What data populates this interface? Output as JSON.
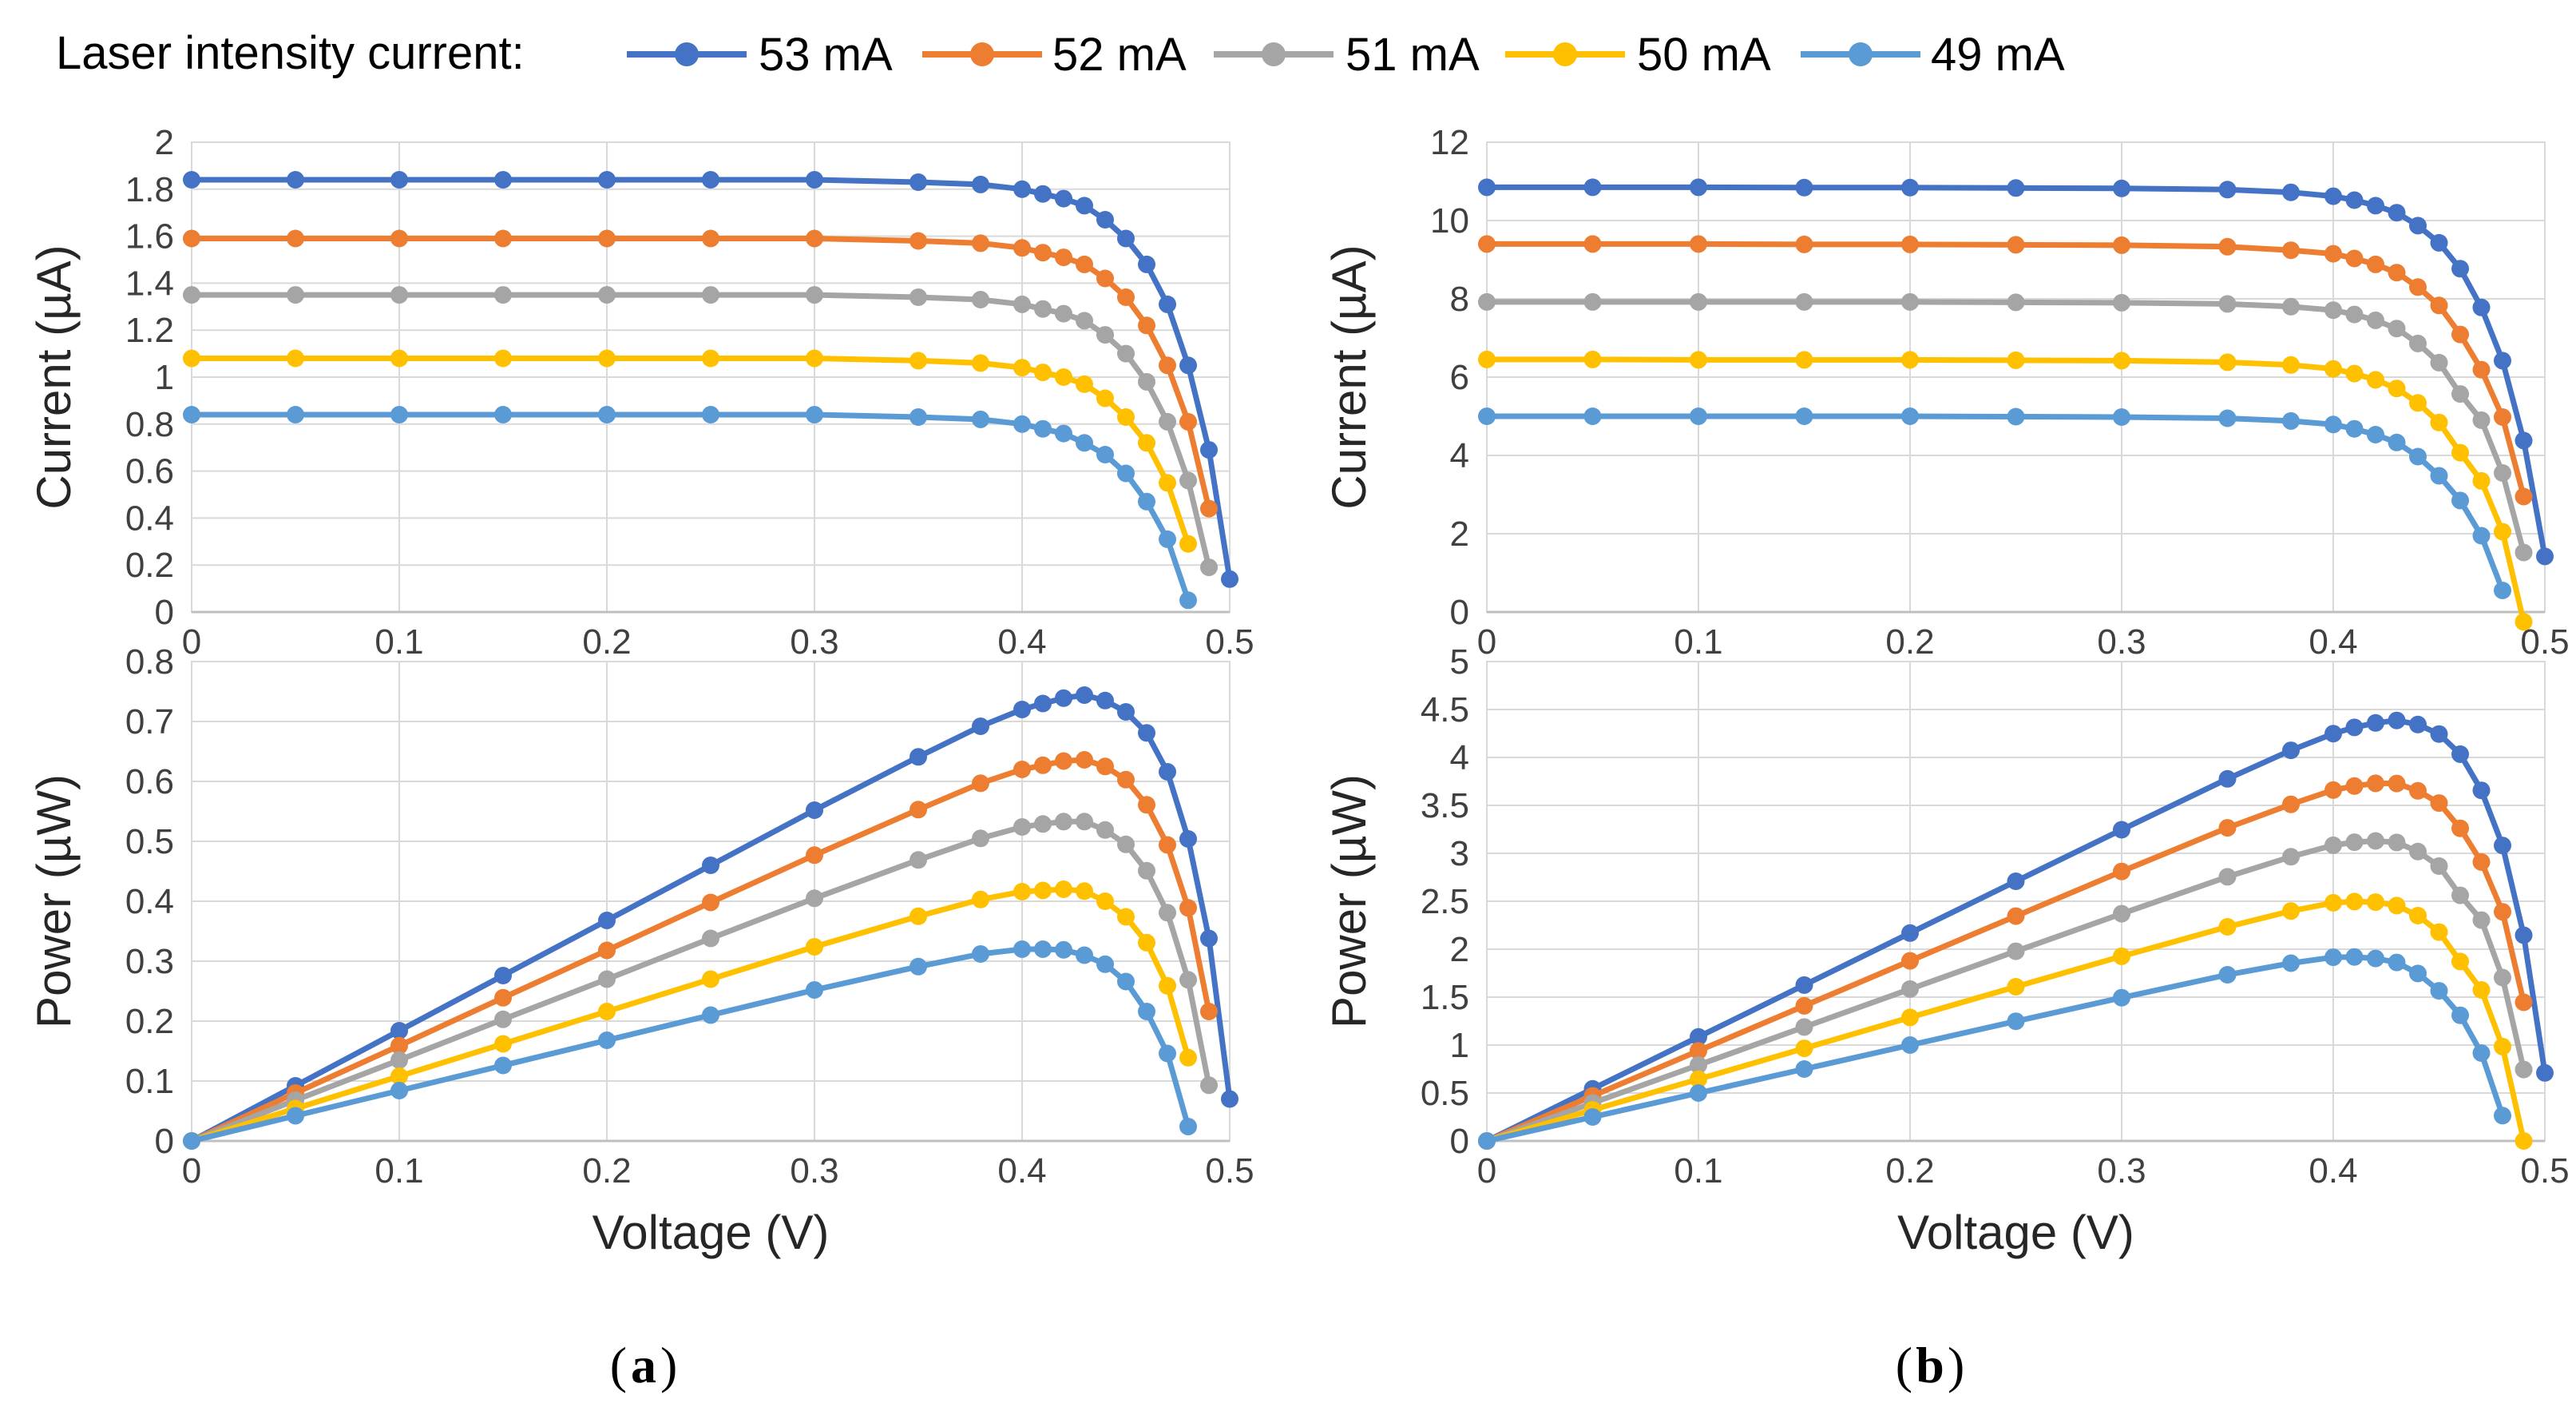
{
  "legend": {
    "title": "Laser intensity current:",
    "entries": [
      {
        "label": "53 mA",
        "color": "#4472C4"
      },
      {
        "label": "52 mA",
        "color": "#ED7D31"
      },
      {
        "label": "51 mA",
        "color": "#A5A5A5"
      },
      {
        "label": "50 mA",
        "color": "#FFC000"
      },
      {
        "label": "49 mA",
        "color": "#5B9BD5"
      }
    ]
  },
  "panels": [
    {
      "label": "a"
    },
    {
      "label": "b"
    }
  ],
  "chart_data": [
    {
      "id": "a-current",
      "type": "line",
      "panel": "a",
      "xlabel": "Voltage (V)",
      "ylabel": "Current (µA)",
      "xlim": [
        0,
        0.5
      ],
      "ylim": [
        0,
        2
      ],
      "xticks": [
        0,
        0.1,
        0.2,
        0.3,
        0.4,
        0.5
      ],
      "xtick_labels": [
        "0",
        "0.1",
        "0.2",
        "0.3",
        "0.4",
        "0.5"
      ],
      "yticks": [
        0,
        0.2,
        0.4,
        0.6,
        0.8,
        1,
        1.2,
        1.4,
        1.6,
        1.8,
        2
      ],
      "ytick_labels": [
        "0",
        "0.2",
        "0.4",
        "0.6",
        "0.8",
        "1",
        "1.2",
        "1.4",
        "1.6",
        "1.8",
        "2"
      ],
      "grid": true,
      "series": [
        {
          "name": "53 mA",
          "x": [
            0,
            0.05,
            0.1,
            0.15,
            0.2,
            0.25,
            0.3,
            0.35,
            0.38,
            0.4,
            0.41,
            0.42,
            0.43,
            0.44,
            0.45,
            0.46,
            0.47,
            0.48,
            0.49,
            0.5
          ],
          "y": [
            1.84,
            1.84,
            1.84,
            1.84,
            1.84,
            1.84,
            1.84,
            1.83,
            1.82,
            1.8,
            1.78,
            1.76,
            1.73,
            1.67,
            1.59,
            1.48,
            1.31,
            1.05,
            0.69,
            0.14
          ]
        },
        {
          "name": "52 mA",
          "x": [
            0,
            0.05,
            0.1,
            0.15,
            0.2,
            0.25,
            0.3,
            0.35,
            0.38,
            0.4,
            0.41,
            0.42,
            0.43,
            0.44,
            0.45,
            0.46,
            0.47,
            0.48,
            0.49
          ],
          "y": [
            1.59,
            1.59,
            1.59,
            1.59,
            1.59,
            1.59,
            1.59,
            1.58,
            1.57,
            1.55,
            1.53,
            1.51,
            1.48,
            1.42,
            1.34,
            1.22,
            1.05,
            0.81,
            0.44
          ]
        },
        {
          "name": "51 mA",
          "x": [
            0,
            0.05,
            0.1,
            0.15,
            0.2,
            0.25,
            0.3,
            0.35,
            0.38,
            0.4,
            0.41,
            0.42,
            0.43,
            0.44,
            0.45,
            0.46,
            0.47,
            0.48,
            0.49
          ],
          "y": [
            1.35,
            1.35,
            1.35,
            1.35,
            1.35,
            1.35,
            1.35,
            1.34,
            1.33,
            1.31,
            1.29,
            1.27,
            1.24,
            1.18,
            1.1,
            0.98,
            0.81,
            0.56,
            0.19
          ]
        },
        {
          "name": "50 mA",
          "x": [
            0,
            0.05,
            0.1,
            0.15,
            0.2,
            0.25,
            0.3,
            0.35,
            0.38,
            0.4,
            0.41,
            0.42,
            0.43,
            0.44,
            0.45,
            0.46,
            0.47,
            0.48
          ],
          "y": [
            1.08,
            1.08,
            1.08,
            1.08,
            1.08,
            1.08,
            1.08,
            1.07,
            1.06,
            1.04,
            1.02,
            1.0,
            0.97,
            0.91,
            0.83,
            0.72,
            0.55,
            0.29
          ]
        },
        {
          "name": "49 mA",
          "x": [
            0,
            0.05,
            0.1,
            0.15,
            0.2,
            0.25,
            0.3,
            0.35,
            0.38,
            0.4,
            0.41,
            0.42,
            0.43,
            0.44,
            0.45,
            0.46,
            0.47,
            0.48
          ],
          "y": [
            0.84,
            0.84,
            0.84,
            0.84,
            0.84,
            0.84,
            0.84,
            0.83,
            0.82,
            0.8,
            0.78,
            0.76,
            0.72,
            0.67,
            0.59,
            0.47,
            0.31,
            0.05
          ]
        }
      ]
    },
    {
      "id": "a-power",
      "type": "line",
      "panel": "a",
      "xlabel": "Voltage (V)",
      "ylabel": "Power (µW)",
      "xlim": [
        0,
        0.5
      ],
      "ylim": [
        0,
        0.8
      ],
      "xticks": [
        0,
        0.1,
        0.2,
        0.3,
        0.4,
        0.5
      ],
      "xtick_labels": [
        "0",
        "0.1",
        "0.2",
        "0.3",
        "0.4",
        "0.5"
      ],
      "yticks": [
        0,
        0.1,
        0.2,
        0.3,
        0.4,
        0.5,
        0.6,
        0.7,
        0.8
      ],
      "ytick_labels": [
        "0",
        "0.1",
        "0.2",
        "0.3",
        "0.4",
        "0.5",
        "0.6",
        "0.7",
        "0.8"
      ],
      "grid": true,
      "series": [
        {
          "name": "53 mA",
          "x": [
            0,
            0.05,
            0.1,
            0.15,
            0.2,
            0.25,
            0.3,
            0.35,
            0.38,
            0.4,
            0.41,
            0.42,
            0.43,
            0.44,
            0.45,
            0.46,
            0.47,
            0.48,
            0.49,
            0.5
          ],
          "y": [
            0,
            0.092,
            0.184,
            0.276,
            0.368,
            0.46,
            0.552,
            0.641,
            0.692,
            0.72,
            0.73,
            0.739,
            0.744,
            0.735,
            0.716,
            0.681,
            0.616,
            0.504,
            0.338,
            0.07
          ]
        },
        {
          "name": "52 mA",
          "x": [
            0,
            0.05,
            0.1,
            0.15,
            0.2,
            0.25,
            0.3,
            0.35,
            0.38,
            0.4,
            0.41,
            0.42,
            0.43,
            0.44,
            0.45,
            0.46,
            0.47,
            0.48,
            0.49
          ],
          "y": [
            0,
            0.08,
            0.159,
            0.239,
            0.318,
            0.398,
            0.477,
            0.553,
            0.597,
            0.62,
            0.627,
            0.634,
            0.636,
            0.625,
            0.603,
            0.561,
            0.494,
            0.389,
            0.216
          ]
        },
        {
          "name": "51 mA",
          "x": [
            0,
            0.05,
            0.1,
            0.15,
            0.2,
            0.25,
            0.3,
            0.35,
            0.38,
            0.4,
            0.41,
            0.42,
            0.43,
            0.44,
            0.45,
            0.46,
            0.47,
            0.48,
            0.49
          ],
          "y": [
            0,
            0.068,
            0.135,
            0.203,
            0.27,
            0.338,
            0.405,
            0.469,
            0.505,
            0.524,
            0.529,
            0.533,
            0.533,
            0.519,
            0.495,
            0.451,
            0.381,
            0.269,
            0.093
          ]
        },
        {
          "name": "50 mA",
          "x": [
            0,
            0.05,
            0.1,
            0.15,
            0.2,
            0.25,
            0.3,
            0.35,
            0.38,
            0.4,
            0.41,
            0.42,
            0.43,
            0.44,
            0.45,
            0.46,
            0.47,
            0.48
          ],
          "y": [
            0,
            0.054,
            0.108,
            0.162,
            0.216,
            0.27,
            0.324,
            0.375,
            0.403,
            0.416,
            0.418,
            0.42,
            0.417,
            0.4,
            0.374,
            0.331,
            0.259,
            0.139
          ]
        },
        {
          "name": "49 mA",
          "x": [
            0,
            0.05,
            0.1,
            0.15,
            0.2,
            0.25,
            0.3,
            0.35,
            0.38,
            0.4,
            0.41,
            0.42,
            0.43,
            0.44,
            0.45,
            0.46,
            0.47,
            0.48
          ],
          "y": [
            0,
            0.042,
            0.084,
            0.126,
            0.168,
            0.21,
            0.252,
            0.291,
            0.312,
            0.32,
            0.32,
            0.319,
            0.31,
            0.295,
            0.266,
            0.216,
            0.146,
            0.024
          ]
        }
      ]
    },
    {
      "id": "b-current",
      "type": "line",
      "panel": "b",
      "xlabel": "Voltage (V)",
      "ylabel": "Current (µA)",
      "xlim": [
        0,
        0.5
      ],
      "ylim": [
        0,
        12
      ],
      "xticks": [
        0,
        0.1,
        0.2,
        0.3,
        0.4,
        0.5
      ],
      "xtick_labels": [
        "0",
        "0.1",
        "0.2",
        "0.3",
        "0.4",
        "0.5"
      ],
      "yticks": [
        0,
        2,
        4,
        6,
        8,
        10,
        12
      ],
      "ytick_labels": [
        "0",
        "2",
        "4",
        "6",
        "8",
        "10",
        "12"
      ],
      "grid": true,
      "series": [
        {
          "name": "53 mA",
          "x": [
            0,
            0.05,
            0.1,
            0.15,
            0.2,
            0.25,
            0.3,
            0.35,
            0.38,
            0.4,
            0.41,
            0.42,
            0.43,
            0.44,
            0.45,
            0.46,
            0.47,
            0.48,
            0.49,
            0.5
          ],
          "y": [
            10.85,
            10.85,
            10.85,
            10.84,
            10.84,
            10.83,
            10.82,
            10.79,
            10.72,
            10.62,
            10.52,
            10.38,
            10.2,
            9.87,
            9.43,
            8.77,
            7.78,
            6.42,
            4.38,
            1.42
          ]
        },
        {
          "name": "52 mA",
          "x": [
            0,
            0.05,
            0.1,
            0.15,
            0.2,
            0.25,
            0.3,
            0.35,
            0.38,
            0.4,
            0.41,
            0.42,
            0.43,
            0.44,
            0.45,
            0.46,
            0.47,
            0.48,
            0.49
          ],
          "y": [
            9.4,
            9.4,
            9.4,
            9.39,
            9.39,
            9.38,
            9.37,
            9.33,
            9.24,
            9.15,
            9.03,
            8.88,
            8.67,
            8.3,
            7.83,
            7.09,
            6.19,
            4.98,
            2.95
          ]
        },
        {
          "name": "51 mA",
          "x": [
            0,
            0.05,
            0.1,
            0.15,
            0.2,
            0.25,
            0.3,
            0.35,
            0.38,
            0.4,
            0.41,
            0.42,
            0.43,
            0.44,
            0.45,
            0.46,
            0.47,
            0.48,
            0.49
          ],
          "y": [
            7.92,
            7.92,
            7.92,
            7.92,
            7.92,
            7.91,
            7.9,
            7.87,
            7.8,
            7.71,
            7.6,
            7.45,
            7.24,
            6.86,
            6.37,
            5.57,
            4.9,
            3.55,
            1.52
          ]
        },
        {
          "name": "50 mA",
          "x": [
            0,
            0.05,
            0.1,
            0.15,
            0.2,
            0.25,
            0.3,
            0.35,
            0.38,
            0.4,
            0.41,
            0.42,
            0.43,
            0.44,
            0.45,
            0.46,
            0.47,
            0.48,
            0.49
          ],
          "y": [
            6.45,
            6.45,
            6.44,
            6.44,
            6.44,
            6.43,
            6.42,
            6.38,
            6.31,
            6.21,
            6.09,
            5.93,
            5.71,
            5.34,
            4.84,
            4.07,
            3.35,
            2.05,
            -0.25
          ]
        },
        {
          "name": "49 mA",
          "x": [
            0,
            0.05,
            0.1,
            0.15,
            0.2,
            0.25,
            0.3,
            0.35,
            0.38,
            0.4,
            0.41,
            0.42,
            0.43,
            0.44,
            0.45,
            0.46,
            0.47,
            0.48
          ],
          "y": [
            5.0,
            5.0,
            5.0,
            5.0,
            5.0,
            4.99,
            4.98,
            4.95,
            4.88,
            4.79,
            4.68,
            4.53,
            4.33,
            3.97,
            3.48,
            2.85,
            1.95,
            0.55
          ]
        }
      ]
    },
    {
      "id": "b-power",
      "type": "line",
      "panel": "b",
      "xlabel": "Voltage (V)",
      "ylabel": "Power (µW)",
      "xlim": [
        0,
        0.5
      ],
      "ylim": [
        0,
        5
      ],
      "xticks": [
        0,
        0.1,
        0.2,
        0.3,
        0.4,
        0.5
      ],
      "xtick_labels": [
        "0",
        "0.1",
        "0.2",
        "0.3",
        "0.4",
        "0.5"
      ],
      "yticks": [
        0,
        0.5,
        1,
        1.5,
        2,
        2.5,
        3,
        3.5,
        4,
        4.5,
        5
      ],
      "ytick_labels": [
        "0",
        "0.5",
        "1",
        "1.5",
        "2",
        "2.5",
        "3",
        "3.5",
        "4",
        "4.5",
        "5"
      ],
      "grid": true,
      "series": [
        {
          "name": "53 mA",
          "x": [
            0,
            0.05,
            0.1,
            0.15,
            0.2,
            0.25,
            0.3,
            0.35,
            0.38,
            0.4,
            0.41,
            0.42,
            0.43,
            0.44,
            0.45,
            0.46,
            0.47,
            0.48,
            0.49,
            0.5
          ],
          "y": [
            0,
            0.543,
            1.085,
            1.626,
            2.168,
            2.708,
            3.246,
            3.777,
            4.074,
            4.248,
            4.313,
            4.36,
            4.386,
            4.343,
            4.244,
            4.034,
            3.657,
            3.082,
            2.146,
            0.71
          ]
        },
        {
          "name": "52 mA",
          "x": [
            0,
            0.05,
            0.1,
            0.15,
            0.2,
            0.25,
            0.3,
            0.35,
            0.38,
            0.4,
            0.41,
            0.42,
            0.43,
            0.44,
            0.45,
            0.46,
            0.47,
            0.48,
            0.49
          ],
          "y": [
            0,
            0.47,
            0.94,
            1.409,
            1.878,
            2.345,
            2.811,
            3.266,
            3.511,
            3.66,
            3.702,
            3.73,
            3.728,
            3.652,
            3.524,
            3.261,
            2.909,
            2.39,
            1.446
          ]
        },
        {
          "name": "51 mA",
          "x": [
            0,
            0.05,
            0.1,
            0.15,
            0.2,
            0.25,
            0.3,
            0.35,
            0.38,
            0.4,
            0.41,
            0.42,
            0.43,
            0.44,
            0.45,
            0.46,
            0.47,
            0.48,
            0.49
          ],
          "y": [
            0,
            0.396,
            0.792,
            1.188,
            1.584,
            1.978,
            2.37,
            2.755,
            2.964,
            3.084,
            3.116,
            3.129,
            3.113,
            3.018,
            2.867,
            2.562,
            2.303,
            1.704,
            0.745
          ]
        },
        {
          "name": "50 mA",
          "x": [
            0,
            0.05,
            0.1,
            0.15,
            0.2,
            0.25,
            0.3,
            0.35,
            0.38,
            0.4,
            0.41,
            0.42,
            0.43,
            0.44,
            0.45,
            0.46,
            0.47,
            0.48,
            0.49
          ],
          "y": [
            0,
            0.323,
            0.644,
            0.966,
            1.288,
            1.608,
            1.926,
            2.233,
            2.398,
            2.484,
            2.497,
            2.491,
            2.455,
            2.35,
            2.178,
            1.872,
            1.575,
            0.984,
            0.0
          ]
        },
        {
          "name": "49 mA",
          "x": [
            0,
            0.05,
            0.1,
            0.15,
            0.2,
            0.25,
            0.3,
            0.35,
            0.38,
            0.4,
            0.41,
            0.42,
            0.43,
            0.44,
            0.45,
            0.46,
            0.47,
            0.48
          ],
          "y": [
            0,
            0.25,
            0.5,
            0.75,
            1.0,
            1.248,
            1.494,
            1.733,
            1.854,
            1.916,
            1.919,
            1.903,
            1.862,
            1.747,
            1.566,
            1.311,
            0.917,
            0.264
          ]
        }
      ]
    }
  ]
}
